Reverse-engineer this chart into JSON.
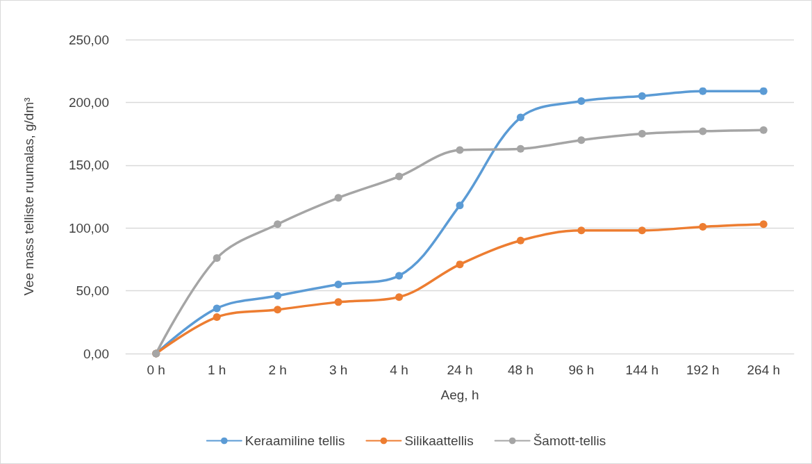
{
  "chart_data": {
    "type": "line",
    "xlabel": "Aeg, h",
    "ylabel": "Vee mass telliste ruumalas, g/dm³",
    "categories": [
      "0 h",
      "1 h",
      "2 h",
      "3 h",
      "4 h",
      "24 h",
      "48 h",
      "96 h",
      "144 h",
      "192 h",
      "264 h"
    ],
    "series": [
      {
        "name": "Keraamiline tellis",
        "color": "#5b9bd5",
        "values": [
          0,
          36,
          46,
          55,
          62,
          118,
          188,
          201,
          205,
          209,
          209
        ]
      },
      {
        "name": "Silikaattellis",
        "color": "#ed7d31",
        "values": [
          0,
          29,
          35,
          41,
          45,
          71,
          90,
          98,
          98,
          101,
          103
        ]
      },
      {
        "name": "Šamott-tellis",
        "color": "#a5a5a5",
        "values": [
          0,
          76,
          103,
          124,
          141,
          162,
          163,
          170,
          175,
          177,
          178
        ]
      }
    ],
    "ylim": [
      0,
      250
    ],
    "yticks": [
      {
        "value": 0,
        "label": "0,00"
      },
      {
        "value": 50,
        "label": "50,00"
      },
      {
        "value": 100,
        "label": "100,00"
      },
      {
        "value": 150,
        "label": "150,00"
      },
      {
        "value": 200,
        "label": "200,00"
      },
      {
        "value": 250,
        "label": "250,00"
      }
    ],
    "grid": "y",
    "legend": "bottom",
    "marker": "circle",
    "line_style": "solid"
  }
}
